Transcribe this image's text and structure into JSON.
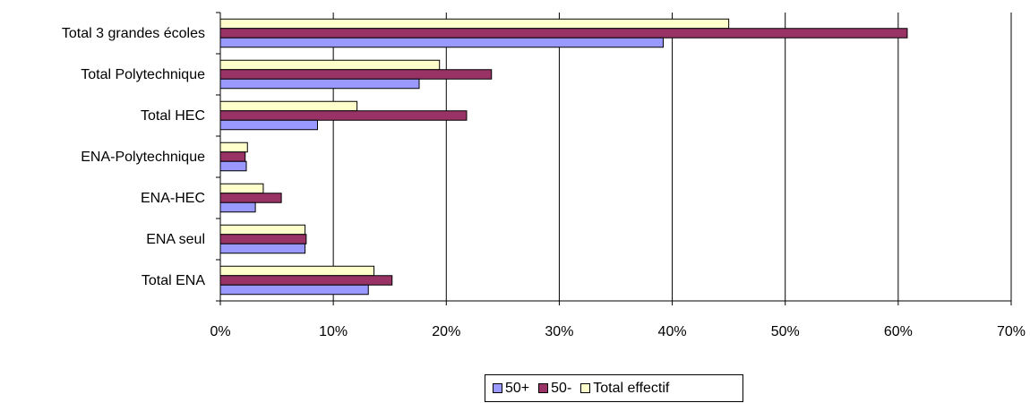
{
  "chart_data": {
    "type": "bar",
    "orientation": "horizontal",
    "categories": [
      "Total 3 grandes écoles",
      "Total Polytechnique",
      "Total HEC",
      "ENA-Polytechnique",
      "ENA-HEC",
      "ENA seul",
      "Total ENA"
    ],
    "series": [
      {
        "name": "50+",
        "color": "#9999ff",
        "values": [
          39.2,
          17.6,
          8.6,
          2.3,
          3.1,
          7.5,
          13.1
        ]
      },
      {
        "name": "50-",
        "color": "#993366",
        "values": [
          60.8,
          24.0,
          21.8,
          2.2,
          5.4,
          7.6,
          15.2
        ]
      },
      {
        "name": "Total effectif",
        "color": "#ffffcc",
        "values": [
          45.0,
          19.4,
          12.1,
          2.4,
          3.8,
          7.5,
          13.6
        ]
      }
    ],
    "x_ticks": [
      "0%",
      "10%",
      "20%",
      "30%",
      "40%",
      "50%",
      "60%",
      "70%"
    ],
    "xlim": [
      0,
      70
    ],
    "title": "",
    "xlabel": "",
    "ylabel": "",
    "grid": "vertical",
    "legend_position": "bottom-center"
  }
}
